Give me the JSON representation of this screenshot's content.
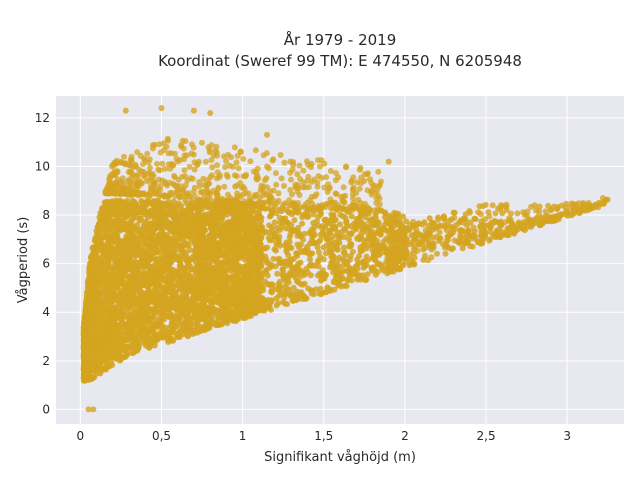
{
  "chart_data": {
    "type": "scatter",
    "title": [
      "År 1979 - 2019",
      "Koordinat (Sweref 99 TM): E 474550, N 6205948"
    ],
    "xlabel": "Signifikant våghöjd (m)",
    "ylabel": "Vågperiod (s)",
    "xlim": [
      -0.15,
      3.35
    ],
    "ylim": [
      -0.6,
      12.9
    ],
    "xticks": [
      0,
      0.5,
      1,
      1.5,
      2,
      2.5,
      3
    ],
    "xtick_labels": [
      "0",
      "0,5",
      "1",
      "1,5",
      "2",
      "2,5",
      "3"
    ],
    "yticks": [
      0,
      2,
      4,
      6,
      8,
      10,
      12
    ],
    "ytick_labels": [
      "0",
      "2",
      "4",
      "6",
      "8",
      "10",
      "12"
    ],
    "grid": true,
    "marker_color": "#D4A420",
    "background_color": "#E8E8F0",
    "grid_color": "#FFFFFF",
    "point_count_estimate": 60000,
    "distribution_envelope": {
      "description_points_hs_tp": [
        [
          0.02,
          1.2
        ],
        [
          0.05,
          1.3
        ],
        [
          0.1,
          1.6
        ],
        [
          0.3,
          2.4
        ],
        [
          0.6,
          3.2
        ],
        [
          1.0,
          4.2
        ],
        [
          1.5,
          5.4
        ],
        [
          2.0,
          6.4
        ],
        [
          2.5,
          7.2
        ],
        [
          3.0,
          8.1
        ],
        [
          3.22,
          8.7
        ],
        [
          2.6,
          8.0
        ],
        [
          2.0,
          8.7
        ],
        [
          1.5,
          9.3
        ],
        [
          1.0,
          10.2
        ],
        [
          0.6,
          11.6
        ],
        [
          0.4,
          12.4
        ],
        [
          0.2,
          12.0
        ],
        [
          0.1,
          10.5
        ],
        [
          0.05,
          6.0
        ]
      ]
    },
    "outlier_points": [
      [
        0.05,
        0.0
      ],
      [
        0.08,
        0.0
      ],
      [
        0.28,
        12.3
      ],
      [
        0.5,
        12.4
      ],
      [
        0.7,
        12.3
      ],
      [
        0.8,
        12.2
      ],
      [
        1.15,
        11.3
      ],
      [
        1.9,
        10.2
      ],
      [
        2.3,
        8.1
      ],
      [
        2.8,
        8.4
      ],
      [
        2.9,
        8.2
      ],
      [
        3.04,
        8.4
      ],
      [
        3.22,
        8.7
      ],
      [
        2.55,
        7.7
      ],
      [
        2.65,
        7.5
      ],
      [
        1.75,
        9.4
      ],
      [
        1.8,
        9.0
      ]
    ]
  }
}
